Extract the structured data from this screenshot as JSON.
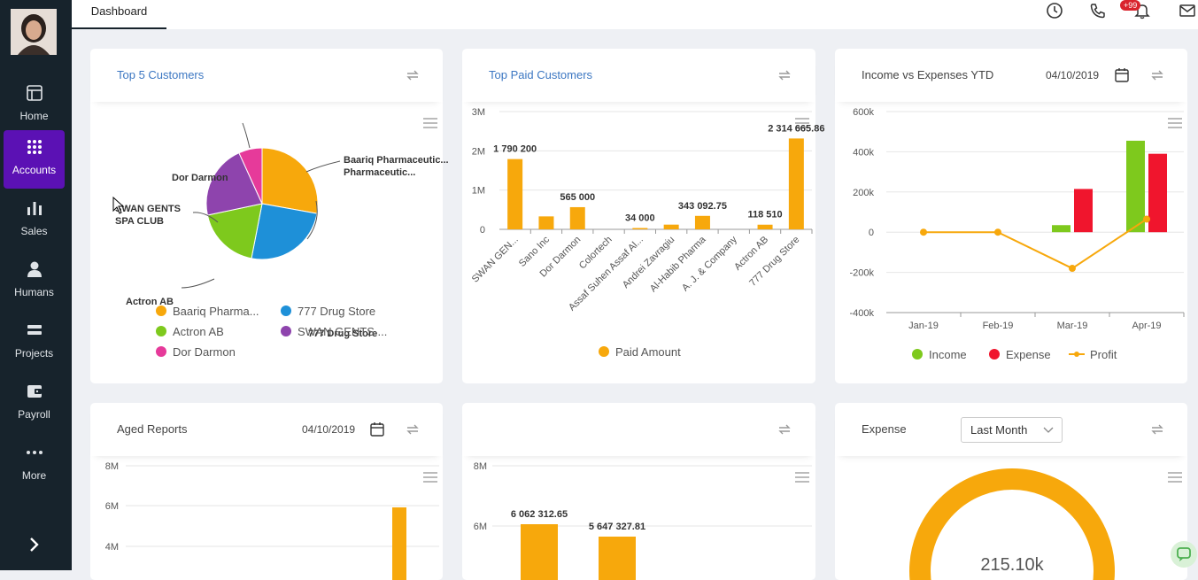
{
  "sidebar": {
    "items": [
      {
        "label": "Home",
        "icon": "layout-icon"
      },
      {
        "label": "Accounts",
        "icon": "grid-icon",
        "active": true
      },
      {
        "label": "Sales",
        "icon": "bar-chart-icon"
      },
      {
        "label": "Humans",
        "icon": "user-icon"
      },
      {
        "label": "Projects",
        "icon": "layers-icon"
      },
      {
        "label": "Payroll",
        "icon": "wallet-icon"
      },
      {
        "label": "More",
        "icon": "dots-icon"
      }
    ]
  },
  "topbar": {
    "tab": "Dashboard",
    "notification_count": "+99"
  },
  "top_customers": {
    "title": "Top 5 Customers"
  },
  "top_paid": {
    "title": "Top Paid Customers"
  },
  "income": {
    "title": "Income vs Expenses YTD",
    "date": "04/10/2019"
  },
  "aged": {
    "title": "Aged Reports",
    "date": "04/10/2019"
  },
  "expense": {
    "title": "Expense",
    "filter": "Last Month",
    "total": "215.10k"
  },
  "colors": {
    "accent": "#5b11b4",
    "orange": "#f7a80c",
    "green": "#7ec91d",
    "red": "#f0152d",
    "blue": "#1e90d8",
    "purple": "#8e44ad",
    "pink": "#e63a9a"
  },
  "chart_data": [
    {
      "type": "pie",
      "categories": [
        "Baariq Pharmaceutic...",
        "777 Drug Store",
        "Actron AB",
        "SWAN GENTS SPA CLUB",
        "Dor Darmon"
      ],
      "values": [
        2314665.86,
        2100000,
        1550000,
        1790200,
        565000
      ],
      "colors": [
        "#f7a80c",
        "#1e90d8",
        "#7ec91d",
        "#8e44ad",
        "#e63a9a"
      ],
      "legend": [
        "Baariq Pharma...",
        "777 Drug Store",
        "Actron AB",
        "SWAN GENTS ...",
        "Dor Darmon"
      ]
    },
    {
      "type": "bar",
      "categories": [
        "SWAN GEN...",
        "Sano Inc",
        "Dor Darmon",
        "Colortech",
        "Assaf Suhen Assaf Al...",
        "Andrei Zavragiu",
        "Al-Habib Pharma",
        "A. J. & Company",
        "Actron AB",
        "777 Drug Store"
      ],
      "values": [
        1790200,
        330000,
        565000,
        0,
        34000,
        120000,
        343092.75,
        0,
        118510,
        2314665.86
      ],
      "data_labels": [
        "1 790 200",
        "",
        "565 000",
        "",
        "34 000",
        "",
        "343 092.75",
        "",
        "118 510",
        "2 314 665.86"
      ],
      "yticks": [
        "3M",
        "2M",
        "1M",
        "0"
      ],
      "ylim": [
        0,
        3000000
      ],
      "series_name": "Paid Amount"
    },
    {
      "type": "bar",
      "categories": [
        "Jan-19",
        "Feb-19",
        "Mar-19",
        "Apr-19"
      ],
      "series": [
        {
          "name": "Income",
          "values": [
            0,
            0,
            35000,
            455000
          ]
        },
        {
          "name": "Expense",
          "values": [
            0,
            0,
            215000,
            390000
          ]
        },
        {
          "name": "Profit",
          "values": [
            0,
            0,
            -180000,
            65000
          ]
        }
      ],
      "yticks": [
        "600k",
        "400k",
        "200k",
        "0",
        "-200k",
        "-400k"
      ],
      "ylim": [
        -400000,
        600000
      ]
    },
    {
      "type": "bar",
      "yticks": [
        "8M",
        "6M",
        "4M"
      ],
      "ylim": [
        3000000,
        8000000
      ],
      "values": [
        5900000
      ]
    },
    {
      "type": "bar",
      "yticks": [
        "8M",
        "6M"
      ],
      "values": [
        6062312.65,
        5647327.81
      ],
      "data_labels": [
        "6 062 312.65",
        "5 647 327.81"
      ]
    }
  ]
}
